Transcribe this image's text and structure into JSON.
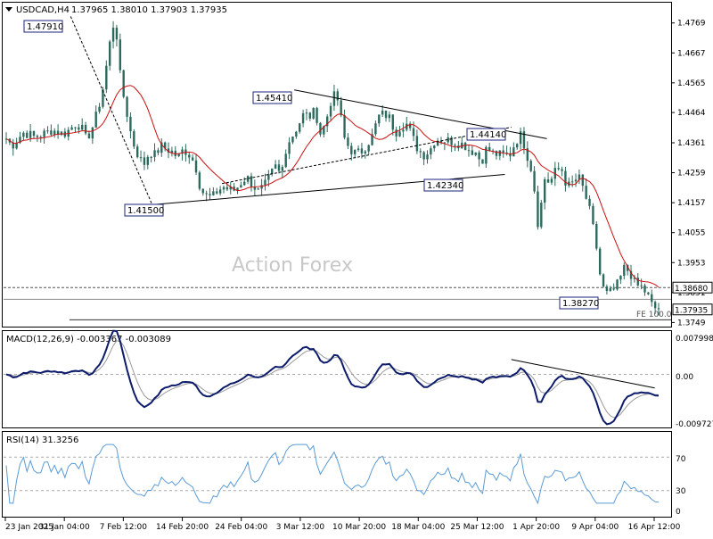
{
  "header": {
    "symbol": "USDCAD,H4",
    "ohlc": "1.37965 1.38010 1.37903 1.37935"
  },
  "watermark": "Action Forex",
  "colors": {
    "candle": "#2d6a5e",
    "ma": "#cc1111",
    "macd_main": "#0c1b6b",
    "macd_signal": "#999999",
    "rsi": "#5b9bd5",
    "trendline": "#000000",
    "grid": "#aaaaaa"
  },
  "chart_data": [
    {
      "type": "candlestick",
      "panel": "price",
      "title": "USDCAD,H4",
      "ylim": [
        1.3735,
        1.4835
      ],
      "y_ticks": [
        1.4769,
        1.4667,
        1.4565,
        1.4464,
        1.4361,
        1.4259,
        1.4157,
        1.4055,
        1.3953,
        1.3851,
        1.3749
      ],
      "x_tick_labels": [
        "23 Jan 2025",
        "31 Jan 04:00",
        "7 Feb 12:00",
        "14 Feb 20:00",
        "24 Feb 04:00",
        "3 Mar 12:00",
        "10 Mar 20:00",
        "18 Mar 04:00",
        "25 Mar 12:00",
        "1 Apr 20:00",
        "9 Apr 04:00",
        "16 Apr 12:00"
      ],
      "last_price": "1.37935",
      "level_line": "1.38680",
      "fe_label": "FE 100.0",
      "annotations": [
        {
          "label": "1.47910",
          "value": 1.4791
        },
        {
          "label": "1.41500",
          "value": 1.415
        },
        {
          "label": "1.45410",
          "value": 1.4541
        },
        {
          "label": "1.44140",
          "value": 1.4414
        },
        {
          "label": "1.42340",
          "value": 1.4234
        },
        {
          "label": "1.38270",
          "value": 1.3827
        }
      ],
      "close_path": [
        1.4375,
        1.435,
        1.4375,
        1.4395,
        1.439,
        1.438,
        1.4388,
        1.4395,
        1.4405,
        1.4398,
        1.439,
        1.4405,
        1.4425,
        1.442,
        1.437,
        1.441,
        1.447,
        1.4555,
        1.469,
        1.4791,
        1.457,
        1.447,
        1.437,
        1.432,
        1.4285,
        1.433,
        1.432,
        1.435,
        1.434,
        1.433,
        1.431,
        1.434,
        1.432,
        1.429,
        1.42,
        1.418,
        1.4175,
        1.42,
        1.421,
        1.42,
        1.42,
        1.4225,
        1.4245,
        1.422,
        1.4195,
        1.421,
        1.4245,
        1.428,
        1.425,
        1.4355,
        1.4385,
        1.442,
        1.446,
        1.445,
        1.447,
        1.4385,
        1.4445,
        1.4525,
        1.4505,
        1.438,
        1.434,
        1.4325,
        1.433,
        1.4355,
        1.4385,
        1.445,
        1.446,
        1.4445,
        1.4395,
        1.442,
        1.4425,
        1.438,
        1.4335,
        1.432,
        1.4335,
        1.4375,
        1.437,
        1.437,
        1.4365,
        1.436,
        1.4355,
        1.4335,
        1.433,
        1.4295,
        1.4345,
        1.4325,
        1.432,
        1.432,
        1.432,
        1.4365,
        1.439,
        1.432,
        1.4255,
        1.407,
        1.424,
        1.4225,
        1.4265,
        1.4275,
        1.421,
        1.4225,
        1.4245,
        1.4195,
        1.4125,
        1.4025,
        1.3875,
        1.3845,
        1.3855,
        1.3885,
        1.3935,
        1.392,
        1.3875,
        1.387,
        1.3845,
        1.38,
        1.3794
      ]
    },
    {
      "type": "line",
      "panel": "macd",
      "title": "MACD(12,26,9) -0.003367 -0.003089",
      "series": [
        {
          "name": "MACD(12,26,9)"
        }
      ],
      "y_ticks": [
        "0.007998",
        "0.00",
        "-0.009727"
      ],
      "ylim": [
        -0.0125,
        0.0102
      ]
    },
    {
      "type": "line",
      "panel": "rsi",
      "title": "RSI(14) 31.3256",
      "series": [
        {
          "name": "RSI(14)"
        }
      ],
      "y_ticks": [
        70,
        30,
        0
      ],
      "ylim": [
        0,
        100
      ]
    }
  ]
}
